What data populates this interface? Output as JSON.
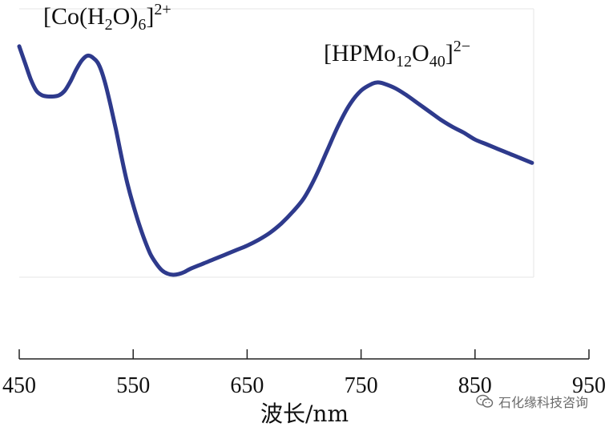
{
  "chart_data": {
    "type": "line",
    "xlabel": "波长/nm",
    "ylabel": "",
    "xlim": [
      450,
      950
    ],
    "xticks": [
      450,
      550,
      650,
      750,
      850,
      950
    ],
    "yticks_shown": false,
    "grid": false,
    "series": [
      {
        "color": "#2e3a8c",
        "x": [
          450,
          455,
          460,
          465,
          470,
          475,
          480,
          485,
          490,
          495,
          500,
          505,
          510,
          515,
          520,
          525,
          530,
          535,
          540,
          545,
          550,
          555,
          560,
          565,
          570,
          575,
          580,
          585,
          590,
          595,
          600,
          610,
          620,
          630,
          640,
          650,
          660,
          670,
          680,
          690,
          700,
          710,
          720,
          730,
          740,
          750,
          760,
          765,
          770,
          780,
          790,
          800,
          810,
          820,
          830,
          840,
          850,
          860,
          870,
          880,
          890,
          900
        ],
        "y": [
          0.98,
          0.91,
          0.84,
          0.79,
          0.77,
          0.765,
          0.765,
          0.77,
          0.79,
          0.83,
          0.88,
          0.92,
          0.94,
          0.93,
          0.9,
          0.83,
          0.73,
          0.62,
          0.5,
          0.39,
          0.3,
          0.22,
          0.15,
          0.09,
          0.05,
          0.02,
          0.005,
          0.0,
          0.003,
          0.012,
          0.025,
          0.045,
          0.065,
          0.085,
          0.105,
          0.125,
          0.15,
          0.18,
          0.22,
          0.27,
          0.33,
          0.42,
          0.53,
          0.64,
          0.73,
          0.79,
          0.82,
          0.825,
          0.82,
          0.8,
          0.77,
          0.735,
          0.7,
          0.665,
          0.635,
          0.61,
          0.58,
          0.56,
          0.54,
          0.52,
          0.5,
          0.48
        ]
      }
    ],
    "annotations": [
      {
        "base": "[Co(H",
        "sub1": "2",
        "mid": "O)",
        "sub2": "6",
        "close": "]",
        "sup": "2+",
        "x": 512
      },
      {
        "base": "[HPMo",
        "sub1": "12",
        "mid": "O",
        "sub2": "40",
        "close": "]",
        "sup": "2−",
        "x": 765
      }
    ]
  },
  "watermark": {
    "icon": "wechat-icon",
    "text": "石化缘科技咨询"
  }
}
